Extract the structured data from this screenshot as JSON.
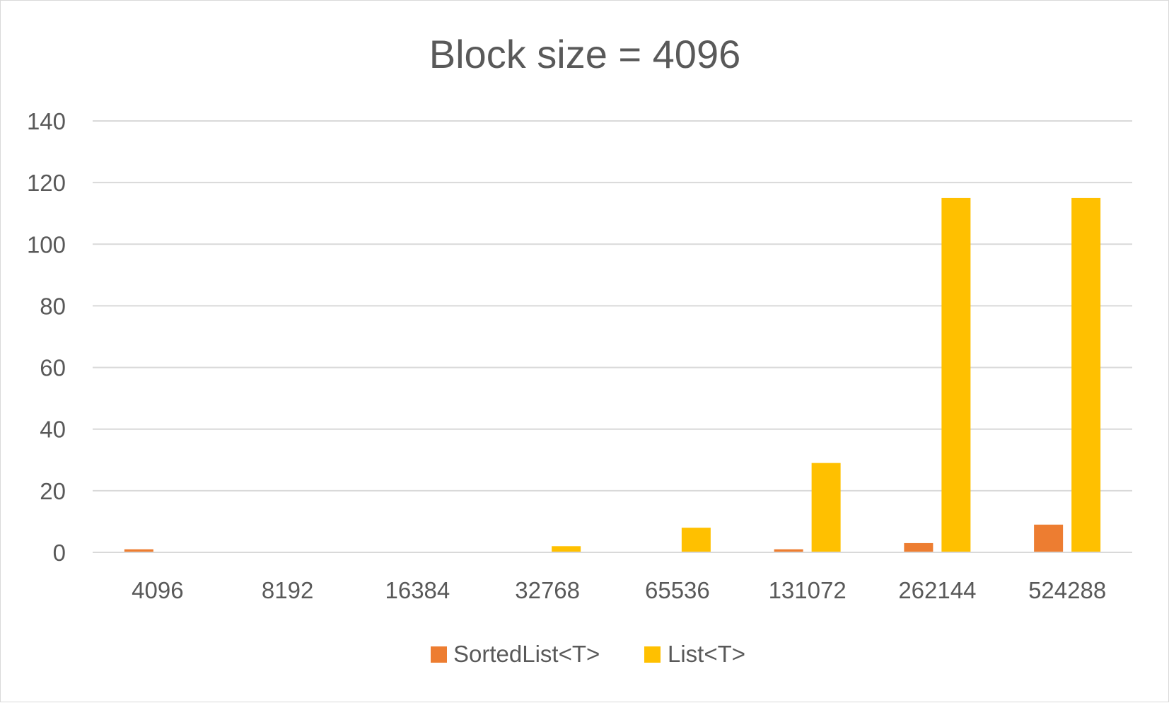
{
  "chart_data": {
    "type": "bar",
    "title": "Block size = 4096",
    "xlabel": "",
    "ylabel": "",
    "categories": [
      "4096",
      "8192",
      "16384",
      "32768",
      "65536",
      "131072",
      "262144",
      "524288"
    ],
    "series": [
      {
        "name": "SortedList<T>",
        "color": "#ED7D31",
        "values": [
          1,
          0,
          0,
          0,
          0,
          1,
          3,
          9
        ]
      },
      {
        "name": "List<T>",
        "color": "#FFC000",
        "values": [
          0,
          0,
          0,
          2,
          8,
          29,
          115,
          115
        ]
      }
    ],
    "ylim": [
      0,
      140
    ],
    "yticks": [
      "0",
      "20",
      "40",
      "60",
      "80",
      "100",
      "120",
      "140"
    ],
    "grid": true,
    "legend_position": "bottom"
  }
}
